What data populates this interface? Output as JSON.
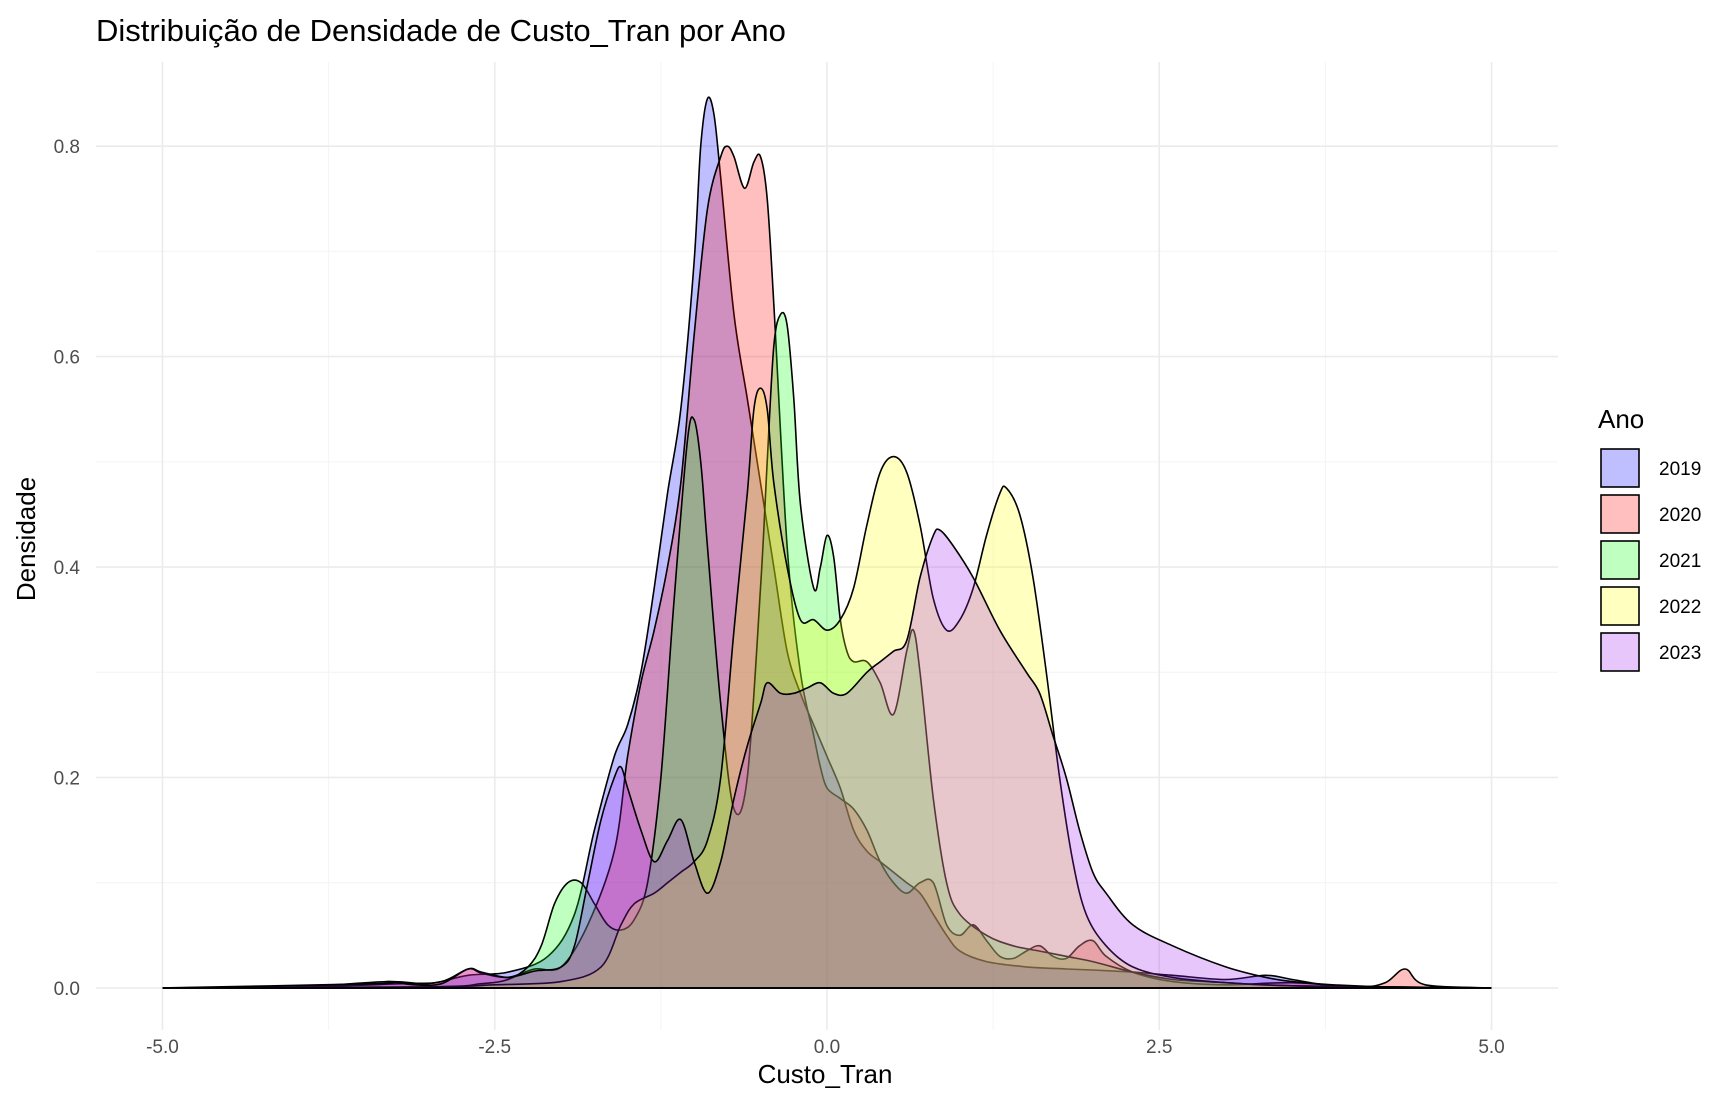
{
  "chart_data": {
    "type": "area",
    "title": "Distribuição de Densidade de Custo_Tran por Ano",
    "xlabel": "Custo_Tran",
    "ylabel": "Densidade",
    "xlim": [
      -5.5,
      5.5
    ],
    "ylim": [
      -0.04,
      0.88
    ],
    "x_ticks": [
      -5.0,
      -2.5,
      0.0,
      2.5,
      5.0
    ],
    "x_tick_labels": [
      "-5.0",
      "-2.5",
      "0.0",
      "2.5",
      "5.0"
    ],
    "y_ticks": [
      0.0,
      0.2,
      0.4,
      0.6,
      0.8
    ],
    "y_tick_labels": [
      "0.0",
      "0.2",
      "0.4",
      "0.6",
      "0.8"
    ],
    "grid": true,
    "legend": {
      "title": "Ano",
      "position": "right"
    },
    "series": [
      {
        "name": "2019",
        "color": "#0000ff",
        "points": [
          [
            -5,
            0
          ],
          [
            -4,
            0.001
          ],
          [
            -3.3,
            0.006
          ],
          [
            -3,
            0.004
          ],
          [
            -2.7,
            0.012
          ],
          [
            -2.4,
            0.015
          ],
          [
            -2.1,
            0.03
          ],
          [
            -1.9,
            0.07
          ],
          [
            -1.75,
            0.15
          ],
          [
            -1.6,
            0.22
          ],
          [
            -1.5,
            0.25
          ],
          [
            -1.4,
            0.3
          ],
          [
            -1.3,
            0.38
          ],
          [
            -1.2,
            0.47
          ],
          [
            -1.1,
            0.55
          ],
          [
            -1.0,
            0.69
          ],
          [
            -0.95,
            0.8
          ],
          [
            -0.9,
            0.845
          ],
          [
            -0.85,
            0.83
          ],
          [
            -0.8,
            0.77
          ],
          [
            -0.7,
            0.64
          ],
          [
            -0.6,
            0.56
          ],
          [
            -0.5,
            0.48
          ],
          [
            -0.4,
            0.4
          ],
          [
            -0.3,
            0.32
          ],
          [
            -0.2,
            0.28
          ],
          [
            -0.1,
            0.25
          ],
          [
            0,
            0.22
          ],
          [
            0.1,
            0.19
          ],
          [
            0.2,
            0.15
          ],
          [
            0.3,
            0.13
          ],
          [
            0.4,
            0.12
          ],
          [
            0.5,
            0.11
          ],
          [
            0.6,
            0.1
          ],
          [
            0.7,
            0.09
          ],
          [
            0.8,
            0.07
          ],
          [
            0.9,
            0.05
          ],
          [
            1.0,
            0.035
          ],
          [
            1.2,
            0.025
          ],
          [
            1.5,
            0.02
          ],
          [
            1.8,
            0.018
          ],
          [
            2.0,
            0.017
          ],
          [
            2.3,
            0.015
          ],
          [
            2.6,
            0.012
          ],
          [
            3.0,
            0.008
          ],
          [
            3.3,
            0.012
          ],
          [
            3.5,
            0.008
          ],
          [
            3.8,
            0.002
          ],
          [
            4.2,
            0.001
          ],
          [
            5,
            0
          ]
        ]
      },
      {
        "name": "2020",
        "color": "#ff0000",
        "points": [
          [
            -5,
            0
          ],
          [
            -4,
            0.001
          ],
          [
            -3.2,
            0.004
          ],
          [
            -2.9,
            0.006
          ],
          [
            -2.7,
            0.018
          ],
          [
            -2.6,
            0.014
          ],
          [
            -2.4,
            0.01
          ],
          [
            -2.2,
            0.018
          ],
          [
            -2.0,
            0.02
          ],
          [
            -1.8,
            0.06
          ],
          [
            -1.6,
            0.13
          ],
          [
            -1.5,
            0.22
          ],
          [
            -1.4,
            0.29
          ],
          [
            -1.3,
            0.34
          ],
          [
            -1.2,
            0.4
          ],
          [
            -1.1,
            0.48
          ],
          [
            -1.0,
            0.62
          ],
          [
            -0.9,
            0.74
          ],
          [
            -0.8,
            0.79
          ],
          [
            -0.75,
            0.8
          ],
          [
            -0.7,
            0.79
          ],
          [
            -0.62,
            0.76
          ],
          [
            -0.55,
            0.785
          ],
          [
            -0.5,
            0.79
          ],
          [
            -0.45,
            0.75
          ],
          [
            -0.4,
            0.65
          ],
          [
            -0.3,
            0.42
          ],
          [
            -0.2,
            0.3
          ],
          [
            -0.1,
            0.24
          ],
          [
            -0.05,
            0.21
          ],
          [
            0,
            0.19
          ],
          [
            0.1,
            0.18
          ],
          [
            0.2,
            0.17
          ],
          [
            0.3,
            0.15
          ],
          [
            0.4,
            0.12
          ],
          [
            0.5,
            0.1
          ],
          [
            0.6,
            0.09
          ],
          [
            0.7,
            0.1
          ],
          [
            0.8,
            0.1
          ],
          [
            0.9,
            0.06
          ],
          [
            1.0,
            0.05
          ],
          [
            1.1,
            0.06
          ],
          [
            1.2,
            0.045
          ],
          [
            1.3,
            0.03
          ],
          [
            1.4,
            0.028
          ],
          [
            1.5,
            0.035
          ],
          [
            1.6,
            0.04
          ],
          [
            1.7,
            0.03
          ],
          [
            1.8,
            0.028
          ],
          [
            1.9,
            0.04
          ],
          [
            2.0,
            0.045
          ],
          [
            2.1,
            0.03
          ],
          [
            2.3,
            0.015
          ],
          [
            2.6,
            0.006
          ],
          [
            3.0,
            0.003
          ],
          [
            3.5,
            0.005
          ],
          [
            4.0,
            0.001
          ],
          [
            4.2,
            0.005
          ],
          [
            4.35,
            0.018
          ],
          [
            4.5,
            0.003
          ],
          [
            5,
            0
          ]
        ]
      },
      {
        "name": "2021",
        "color": "#00ff00",
        "points": [
          [
            -5,
            0
          ],
          [
            -3,
            0.001
          ],
          [
            -2.6,
            0.004
          ],
          [
            -2.4,
            0.008
          ],
          [
            -2.25,
            0.02
          ],
          [
            -2.15,
            0.04
          ],
          [
            -2.05,
            0.08
          ],
          [
            -1.95,
            0.1
          ],
          [
            -1.85,
            0.1
          ],
          [
            -1.75,
            0.08
          ],
          [
            -1.65,
            0.06
          ],
          [
            -1.55,
            0.055
          ],
          [
            -1.45,
            0.065
          ],
          [
            -1.35,
            0.1
          ],
          [
            -1.25,
            0.2
          ],
          [
            -1.15,
            0.37
          ],
          [
            -1.05,
            0.52
          ],
          [
            -1.0,
            0.54
          ],
          [
            -0.95,
            0.5
          ],
          [
            -0.9,
            0.42
          ],
          [
            -0.8,
            0.27
          ],
          [
            -0.7,
            0.17
          ],
          [
            -0.6,
            0.2
          ],
          [
            -0.5,
            0.38
          ],
          [
            -0.45,
            0.5
          ],
          [
            -0.4,
            0.61
          ],
          [
            -0.35,
            0.64
          ],
          [
            -0.3,
            0.63
          ],
          [
            -0.25,
            0.56
          ],
          [
            -0.2,
            0.46
          ],
          [
            -0.1,
            0.38
          ],
          [
            -0.05,
            0.4
          ],
          [
            0,
            0.43
          ],
          [
            0.05,
            0.41
          ],
          [
            0.1,
            0.35
          ],
          [
            0.15,
            0.32
          ],
          [
            0.2,
            0.31
          ],
          [
            0.3,
            0.31
          ],
          [
            0.4,
            0.29
          ],
          [
            0.5,
            0.26
          ],
          [
            0.6,
            0.32
          ],
          [
            0.65,
            0.34
          ],
          [
            0.7,
            0.3
          ],
          [
            0.8,
            0.18
          ],
          [
            0.9,
            0.1
          ],
          [
            1.0,
            0.07
          ],
          [
            1.2,
            0.05
          ],
          [
            1.4,
            0.04
          ],
          [
            1.6,
            0.035
          ],
          [
            1.8,
            0.03
          ],
          [
            2.0,
            0.025
          ],
          [
            2.3,
            0.015
          ],
          [
            2.6,
            0.008
          ],
          [
            3.0,
            0.005
          ],
          [
            3.5,
            0.002
          ],
          [
            5,
            0
          ]
        ]
      },
      {
        "name": "2022",
        "color": "#ffff00",
        "points": [
          [
            -5,
            0
          ],
          [
            -3,
            0.001
          ],
          [
            -2.5,
            0.003
          ],
          [
            -2.0,
            0.006
          ],
          [
            -1.7,
            0.02
          ],
          [
            -1.55,
            0.06
          ],
          [
            -1.45,
            0.08
          ],
          [
            -1.3,
            0.09
          ],
          [
            -1.2,
            0.1
          ],
          [
            -1.1,
            0.11
          ],
          [
            -1.0,
            0.12
          ],
          [
            -0.9,
            0.14
          ],
          [
            -0.8,
            0.2
          ],
          [
            -0.7,
            0.34
          ],
          [
            -0.6,
            0.47
          ],
          [
            -0.55,
            0.55
          ],
          [
            -0.5,
            0.57
          ],
          [
            -0.45,
            0.55
          ],
          [
            -0.4,
            0.48
          ],
          [
            -0.3,
            0.4
          ],
          [
            -0.2,
            0.35
          ],
          [
            -0.1,
            0.35
          ],
          [
            0,
            0.34
          ],
          [
            0.1,
            0.35
          ],
          [
            0.2,
            0.38
          ],
          [
            0.3,
            0.44
          ],
          [
            0.4,
            0.49
          ],
          [
            0.5,
            0.505
          ],
          [
            0.6,
            0.49
          ],
          [
            0.7,
            0.44
          ],
          [
            0.8,
            0.37
          ],
          [
            0.9,
            0.34
          ],
          [
            1.0,
            0.35
          ],
          [
            1.1,
            0.38
          ],
          [
            1.2,
            0.43
          ],
          [
            1.3,
            0.47
          ],
          [
            1.35,
            0.475
          ],
          [
            1.45,
            0.45
          ],
          [
            1.55,
            0.39
          ],
          [
            1.65,
            0.3
          ],
          [
            1.75,
            0.2
          ],
          [
            1.85,
            0.12
          ],
          [
            1.95,
            0.07
          ],
          [
            2.1,
            0.04
          ],
          [
            2.3,
            0.02
          ],
          [
            2.6,
            0.01
          ],
          [
            3.0,
            0.005
          ],
          [
            3.5,
            0.002
          ],
          [
            4,
            0.001
          ],
          [
            5,
            0
          ]
        ]
      },
      {
        "name": "2023",
        "color": "#a020f0",
        "points": [
          [
            -5,
            0
          ],
          [
            -3.4,
            0.004
          ],
          [
            -3.3,
            0.006
          ],
          [
            -3.1,
            0.003
          ],
          [
            -2.9,
            0.004
          ],
          [
            -2.7,
            0.018
          ],
          [
            -2.6,
            0.015
          ],
          [
            -2.4,
            0.01
          ],
          [
            -2.2,
            0.016
          ],
          [
            -2.0,
            0.02
          ],
          [
            -1.9,
            0.04
          ],
          [
            -1.8,
            0.1
          ],
          [
            -1.7,
            0.16
          ],
          [
            -1.6,
            0.2
          ],
          [
            -1.55,
            0.21
          ],
          [
            -1.5,
            0.19
          ],
          [
            -1.4,
            0.15
          ],
          [
            -1.3,
            0.12
          ],
          [
            -1.2,
            0.14
          ],
          [
            -1.1,
            0.16
          ],
          [
            -1.0,
            0.12
          ],
          [
            -0.9,
            0.09
          ],
          [
            -0.8,
            0.12
          ],
          [
            -0.7,
            0.18
          ],
          [
            -0.6,
            0.23
          ],
          [
            -0.5,
            0.27
          ],
          [
            -0.45,
            0.29
          ],
          [
            -0.35,
            0.28
          ],
          [
            -0.25,
            0.28
          ],
          [
            -0.15,
            0.285
          ],
          [
            -0.05,
            0.29
          ],
          [
            0.05,
            0.28
          ],
          [
            0.15,
            0.28
          ],
          [
            0.3,
            0.3
          ],
          [
            0.4,
            0.31
          ],
          [
            0.5,
            0.32
          ],
          [
            0.6,
            0.33
          ],
          [
            0.7,
            0.39
          ],
          [
            0.8,
            0.43
          ],
          [
            0.85,
            0.435
          ],
          [
            0.95,
            0.42
          ],
          [
            1.1,
            0.39
          ],
          [
            1.3,
            0.34
          ],
          [
            1.5,
            0.3
          ],
          [
            1.6,
            0.28
          ],
          [
            1.7,
            0.24
          ],
          [
            1.8,
            0.2
          ],
          [
            1.9,
            0.15
          ],
          [
            2.0,
            0.11
          ],
          [
            2.1,
            0.09
          ],
          [
            2.3,
            0.06
          ],
          [
            2.6,
            0.04
          ],
          [
            3.0,
            0.02
          ],
          [
            3.3,
            0.01
          ],
          [
            3.5,
            0.006
          ],
          [
            3.8,
            0.003
          ],
          [
            4.2,
            0.001
          ],
          [
            5,
            0
          ]
        ]
      }
    ]
  }
}
